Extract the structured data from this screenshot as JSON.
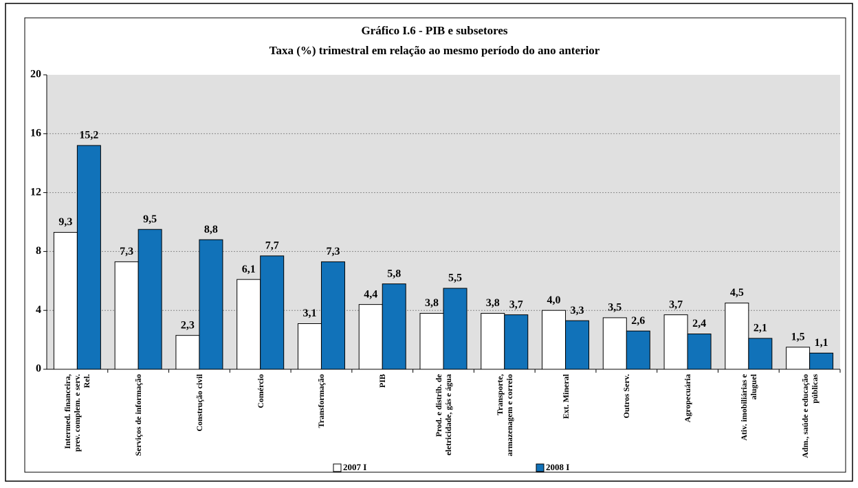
{
  "chart_data": {
    "type": "bar",
    "title": "Gráfico I.6 - PIB  e subsetores",
    "subtitle": "Taxa (%) trimestral em relação ao mesmo período do ano anterior",
    "categories": [
      "Intermed. financeira, prev. complem. e serv. Rel.",
      "Serviços de informação",
      "Construção civil",
      "Comércio",
      "Transformação",
      "PIB",
      "Prod. e distrib. de eletricidade, gás e água",
      "Transporte, armazenagem e correio",
      "Ext. Mineral",
      "Outros Serv.",
      "Agropecuária",
      "Ativ. imobiliárias e aluguel",
      "Adm., saúde e educação públicas"
    ],
    "series": [
      {
        "name": "2007 I",
        "color": "#ffffff",
        "values": [
          9.3,
          7.3,
          2.3,
          6.1,
          3.1,
          4.4,
          3.8,
          3.8,
          4.0,
          3.5,
          3.7,
          4.5,
          1.5
        ],
        "value_labels": [
          "9,3",
          "7,3",
          "2,3",
          "6,1",
          "3,1",
          "4,4",
          "3,8",
          "3,8",
          "4,0",
          "3,5",
          "3,7",
          "4,5",
          "1,5"
        ]
      },
      {
        "name": "2008 I",
        "color": "#1172b9",
        "values": [
          15.2,
          9.5,
          8.8,
          7.7,
          7.3,
          5.8,
          5.5,
          3.7,
          3.3,
          2.6,
          2.4,
          2.1,
          1.1
        ],
        "value_labels": [
          "15,2",
          "9,5",
          "8,8",
          "7,7",
          "7,3",
          "5,8",
          "5,5",
          "3,7",
          "3,3",
          "2,6",
          "2,4",
          "2,1",
          "1,1"
        ]
      }
    ],
    "ylim": [
      0,
      20
    ],
    "yticks": [
      0,
      4,
      8,
      12,
      16,
      20
    ],
    "grid": true
  }
}
